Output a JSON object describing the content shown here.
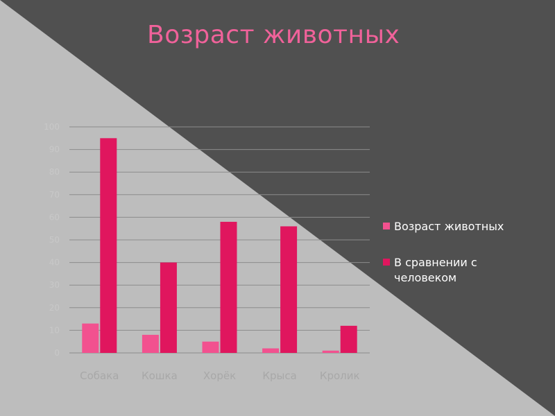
{
  "page": {
    "title": "Возраст животных"
  },
  "colors": {
    "background_dark": "#505050",
    "background_light": "#bdbdbd",
    "title": "#f0629a",
    "series_1": "#f2518f",
    "series_2": "#e0165e",
    "gridline": "#8c8c8c"
  },
  "chart_data": {
    "type": "bar",
    "title": "Возраст животных",
    "categories": [
      "Собака",
      "Кошка",
      "Хорёк",
      "Крыса",
      "Кролик"
    ],
    "series": [
      {
        "name": "Возраст животных",
        "values": [
          13,
          8,
          5,
          2,
          1
        ]
      },
      {
        "name": "В сравнении с человеком",
        "values": [
          95,
          40,
          58,
          56,
          12
        ]
      }
    ],
    "y_ticks": [
      "0",
      "10",
      "20",
      "30",
      "40",
      "50",
      "60",
      "70",
      "80",
      "90",
      "100"
    ],
    "ylim": [
      0,
      100
    ],
    "grid": true,
    "legend_position": "right"
  }
}
